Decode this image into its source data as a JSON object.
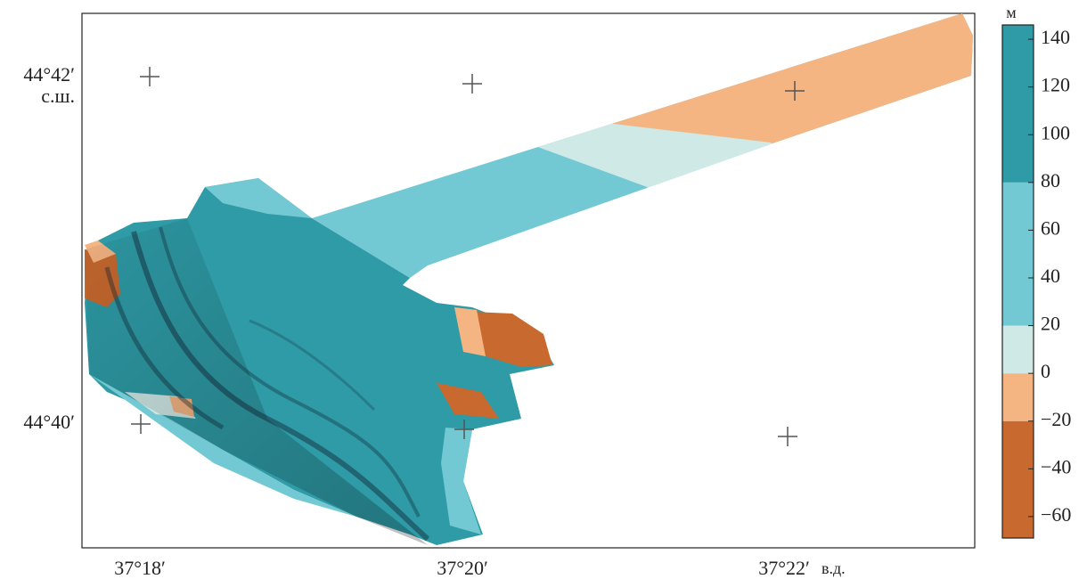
{
  "map": {
    "lat_labels": [
      "44°42′",
      "44°40′"
    ],
    "lat_unit": "с.ш.",
    "lon_labels": [
      "37°18′",
      "37°20′",
      "37°22′"
    ],
    "lon_unit": "в.д."
  },
  "colorbar": {
    "unit": "м",
    "lim": [
      -69,
      146
    ],
    "boundaries": [
      -20,
      0,
      20,
      80
    ],
    "colors": [
      "#c8692f",
      "#f5b583",
      "#cfe9e6",
      "#72c9d3",
      "#2e9ba6"
    ],
    "ticks": [
      140,
      120,
      100,
      80,
      60,
      40,
      20,
      0,
      {
        "value": -20,
        "label": "−20"
      },
      {
        "value": -40,
        "label": "−40"
      },
      {
        "value": -60,
        "label": "−60"
      }
    ]
  }
}
